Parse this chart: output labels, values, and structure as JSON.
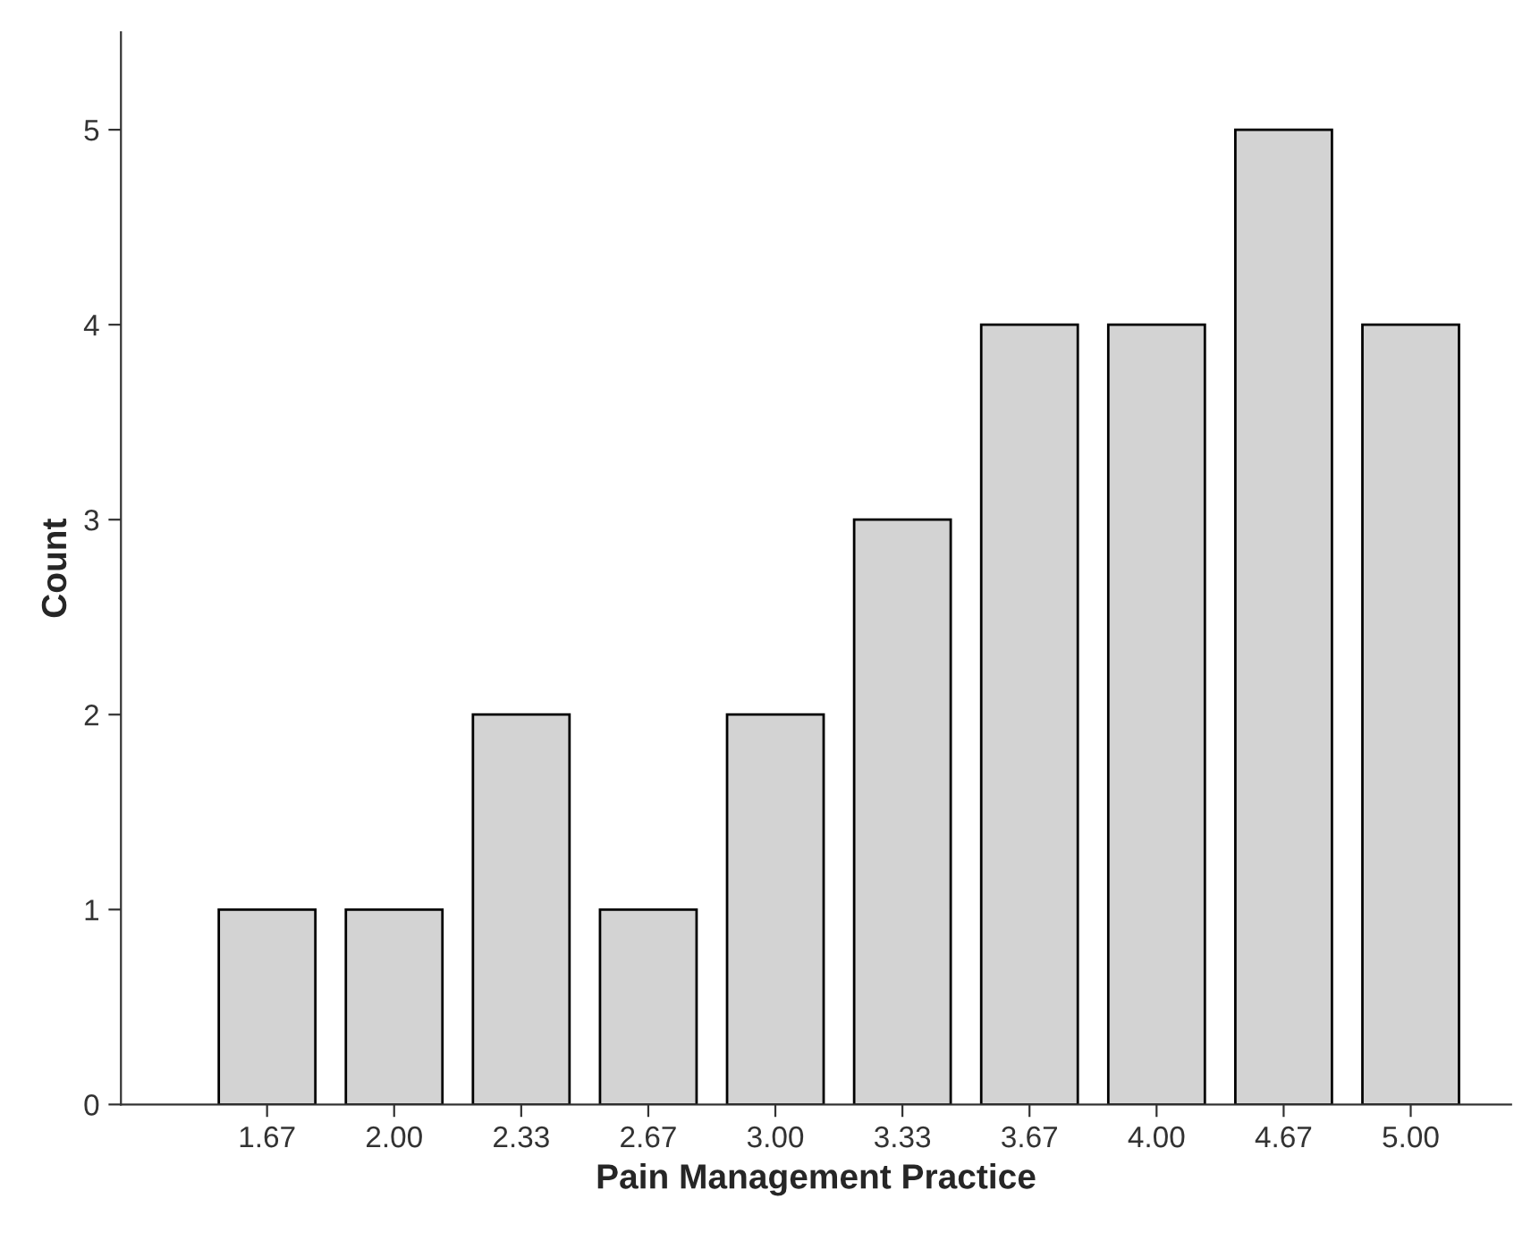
{
  "chart_data": {
    "type": "bar",
    "xlabel": "Pain Management Practice",
    "ylabel": "Count",
    "categories": [
      "1.67",
      "2.00",
      "2.33",
      "2.67",
      "3.00",
      "3.33",
      "3.67",
      "4.00",
      "4.67",
      "5.00"
    ],
    "values": [
      1,
      1,
      2,
      1,
      2,
      3,
      4,
      4,
      5,
      4
    ],
    "color": "#d3d3d3",
    "ylim": [
      0,
      5.5
    ],
    "yticks": [
      0,
      1,
      2,
      3,
      4,
      5
    ],
    "grid": false,
    "legend": false
  }
}
